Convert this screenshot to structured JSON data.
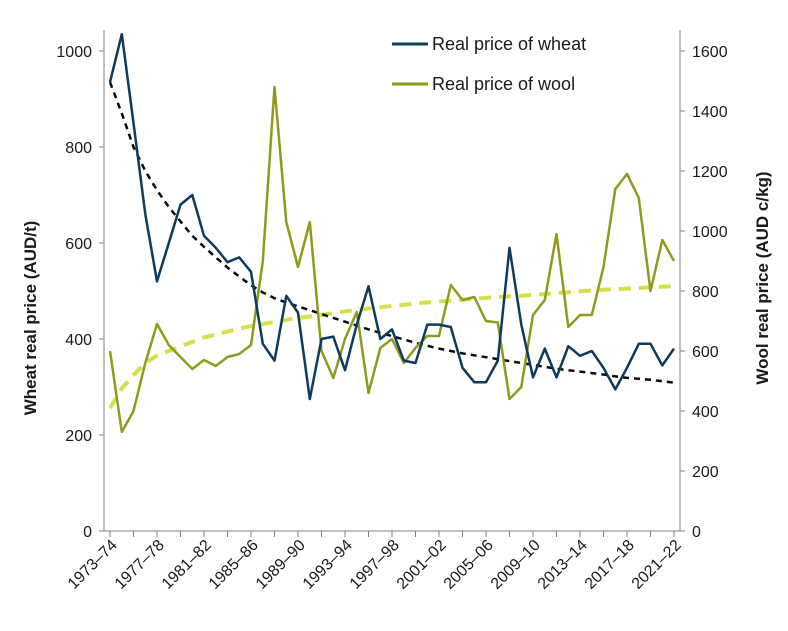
{
  "chart_data": {
    "type": "line",
    "title": "",
    "xlabel": "",
    "ylabel_left": "Wheat real price (AUD/t)",
    "ylabel_right": "Wool real price (AUD c/kg)",
    "ylim_left": [
      0,
      1000
    ],
    "yticks_left": [
      "0",
      "200",
      "400",
      "600",
      "800",
      "1000"
    ],
    "ylim_right": [
      0,
      1600
    ],
    "yticks_right": [
      "0",
      "200",
      "400",
      "600",
      "800",
      "1000",
      "1200",
      "1400",
      "1600"
    ],
    "grid": false,
    "legend_position": "top",
    "x": [
      "1973–74",
      "1974–75",
      "1975–76",
      "1976–77",
      "1977–78",
      "1978–79",
      "1979–80",
      "1980–81",
      "1981–82",
      "1982–83",
      "1983–84",
      "1984–85",
      "1985–86",
      "1986–87",
      "1987–88",
      "1988–89",
      "1989–90",
      "1990–91",
      "1991–92",
      "1992–93",
      "1993–94",
      "1994–95",
      "1995–96",
      "1996–97",
      "1997–98",
      "1998–99",
      "1999–00",
      "2000–01",
      "2001–02",
      "2002–03",
      "2003–04",
      "2004–05",
      "2005–06",
      "2006–07",
      "2007–08",
      "2008–09",
      "2009–10",
      "2010–11",
      "2011–12",
      "2012–13",
      "2013–14",
      "2014–15",
      "2015–16",
      "2016–17",
      "2017–18",
      "2018–19",
      "2019–20",
      "2020–21",
      "2021–22"
    ],
    "x_tick_labels": [
      "1973–74",
      "1977–78",
      "1981–82",
      "1985–86",
      "1989–90",
      "1993–94",
      "1997–98",
      "2001–02",
      "2005–06",
      "2009–10",
      "2013–14",
      "2017–18",
      "2021–22"
    ],
    "series": [
      {
        "name": "Real price of wheat",
        "axis": "left",
        "color": "#0d3b5e",
        "style": "solid",
        "values": [
          935,
          1035,
          850,
          660,
          520,
          600,
          680,
          700,
          615,
          590,
          560,
          570,
          540,
          390,
          355,
          490,
          455,
          275,
          400,
          405,
          335,
          430,
          510,
          400,
          420,
          355,
          350,
          430,
          430,
          425,
          340,
          310,
          310,
          355,
          590,
          430,
          320,
          380,
          320,
          385,
          365,
          375,
          340,
          295,
          340,
          390,
          390,
          345,
          380
        ]
      },
      {
        "name": "Real price of wool",
        "axis": "right",
        "color": "#8f9a1e",
        "style": "solid",
        "values": [
          600,
          330,
          400,
          560,
          690,
          620,
          580,
          540,
          570,
          550,
          580,
          590,
          620,
          900,
          1480,
          1030,
          880,
          1030,
          600,
          510,
          640,
          730,
          460,
          610,
          640,
          560,
          610,
          650,
          650,
          820,
          770,
          780,
          700,
          695,
          440,
          480,
          720,
          770,
          990,
          680,
          720,
          720,
          880,
          1140,
          1190,
          1110,
          800,
          970,
          900
        ]
      },
      {
        "axis": "left",
        "color": "#0a0a0a",
        "style": "dashed",
        "values": [
          935,
          870,
          800,
          750,
          710,
          675,
          645,
          615,
          592,
          570,
          549,
          530,
          512,
          497,
          485,
          476,
          468,
          460,
          452,
          444,
          436,
          428,
          420,
          413,
          406,
          399,
          392,
          386,
          380,
          375,
          370,
          366,
          362,
          358,
          354,
          350,
          346,
          342,
          338,
          335,
          332,
          329,
          326,
          322,
          319,
          317,
          315,
          312,
          309
        ]
      },
      {
        "axis": "right",
        "color": "#d6df4a",
        "style": "dashed",
        "values": [
          410,
          475,
          520,
          560,
          585,
          600,
          615,
          630,
          645,
          655,
          665,
          675,
          683,
          690,
          697,
          704,
          710,
          715,
          720,
          726,
          732,
          737,
          742,
          746,
          750,
          754,
          758,
          762,
          765,
          768,
          771,
          774,
          777,
          780,
          782,
          784,
          787,
          790,
          793,
          796,
          799,
          802,
          804,
          806,
          808,
          810,
          812,
          814,
          816
        ]
      }
    ]
  }
}
